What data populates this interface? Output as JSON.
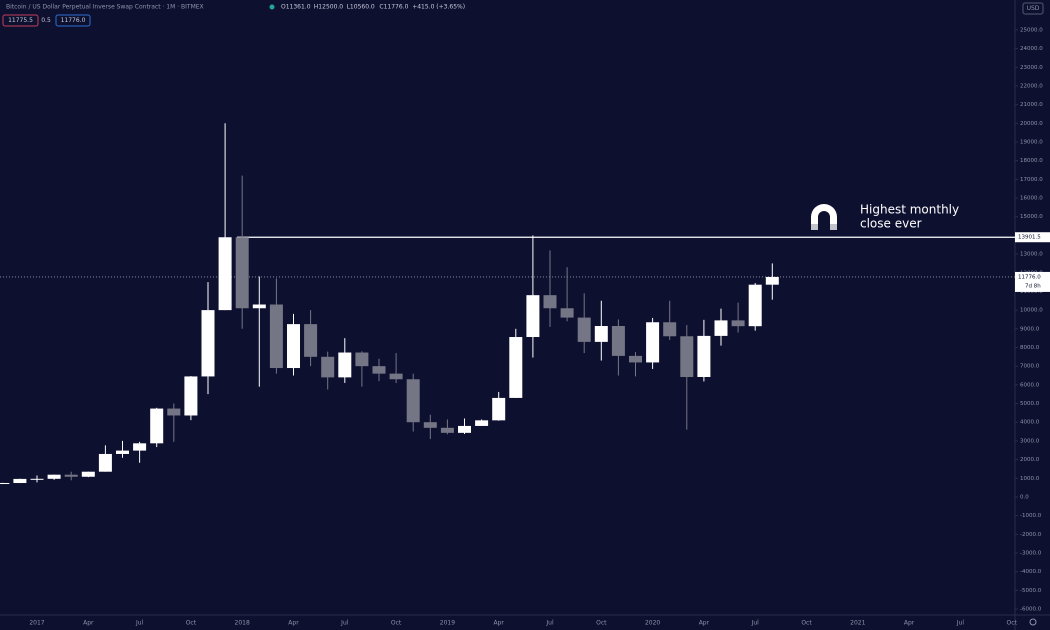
{
  "chart_data": {
    "type": "candlestick",
    "title": "Bitcoin / US Dollar Perpetual Inverse Swap Contract · 1M · BITMEX",
    "ohlc_header": [
      "O11361.0",
      "H12500.0",
      "L10560.0",
      "C11776.0",
      "+415.0 (+3.65%)"
    ],
    "quote_boxes": [
      "11775.5",
      "0.5",
      "11776.0"
    ],
    "currency": "USD",
    "up_color": "#ffffff",
    "down_color": "#757685",
    "background": "#0e1030",
    "categories": [
      null,
      null,
      "2017",
      null,
      null,
      "Apr",
      null,
      null,
      "Jul",
      null,
      null,
      "Oct",
      null,
      null,
      "2018",
      null,
      null,
      "Apr",
      null,
      null,
      "Jul",
      null,
      null,
      "Oct",
      null,
      null,
      "2019",
      null,
      null,
      "Apr",
      null,
      null,
      "Jul",
      null,
      null,
      "Oct",
      null,
      null,
      "2020",
      null,
      null,
      "Apr",
      null,
      null,
      "Jul",
      null,
      null,
      "Oct",
      null,
      null,
      "2021",
      null,
      null,
      "Apr",
      null,
      null,
      "Jul",
      null,
      null,
      "Oct"
    ],
    "open": [
      700,
      745,
      965,
      970,
      1190,
      1080,
      1350,
      2300,
      2480,
      2870,
      4730,
      4360,
      6450,
      10000,
      13900,
      10100,
      10300,
      6900,
      9250,
      7500,
      6400,
      7730,
      7000,
      6600,
      6300,
      4000,
      3700,
      3430,
      3800,
      4100,
      5300,
      8560,
      10800,
      10100,
      9600,
      8300,
      9150,
      7550,
      7200,
      9350,
      8600,
      6420,
      8620,
      9450,
      9140,
      11361,
      null,
      null,
      null,
      null,
      null,
      null,
      null,
      null,
      null,
      null,
      null,
      null,
      null,
      null
    ],
    "high": [
      760,
      975,
      1150,
      1200,
      1350,
      1350,
      2760,
      3000,
      2950,
      4770,
      5000,
      6470,
      11500,
      20000,
      17200,
      11800,
      11700,
      9800,
      10000,
      7780,
      8500,
      7800,
      7400,
      7700,
      6600,
      4400,
      4150,
      4200,
      4150,
      5620,
      9000,
      14000,
      13200,
      12300,
      10900,
      10500,
      9500,
      7750,
      9580,
      10500,
      9200,
      9480,
      10080,
      10400,
      11450,
      12500,
      null,
      null,
      null,
      null,
      null,
      null,
      null,
      null,
      null,
      null,
      null,
      null,
      null,
      null
    ],
    "low": [
      690,
      740,
      780,
      915,
      890,
      1060,
      1350,
      2100,
      1830,
      2670,
      2950,
      4110,
      5500,
      10000,
      9000,
      5900,
      6600,
      6500,
      7000,
      5750,
      6100,
      5900,
      6200,
      6100,
      3500,
      3100,
      3350,
      3370,
      3800,
      4080,
      5300,
      7460,
      9100,
      9400,
      7700,
      7300,
      6500,
      6450,
      6850,
      8400,
      3600,
      6180,
      8100,
      8800,
      8900,
      10560,
      null,
      null,
      null,
      null,
      null,
      null,
      null,
      null,
      null,
      null,
      null,
      null,
      null,
      null
    ],
    "close": [
      745,
      965,
      970,
      1190,
      1080,
      1350,
      2300,
      2480,
      2870,
      4730,
      4360,
      6450,
      10000,
      13900,
      10100,
      10300,
      6900,
      9250,
      7500,
      6400,
      7730,
      7000,
      6600,
      6300,
      4000,
      3700,
      3430,
      3800,
      4100,
      5300,
      8560,
      10800,
      10100,
      9600,
      8300,
      9150,
      7550,
      7200,
      9350,
      8600,
      6420,
      8620,
      9450,
      9140,
      11361,
      11776,
      null,
      null,
      null,
      null,
      null,
      null,
      null,
      null,
      null,
      null,
      null,
      null,
      null,
      null
    ],
    "ylim": [
      -6320,
      26600
    ],
    "yticks": [
      {
        "value": -6000,
        "label": "-6000.0"
      },
      {
        "value": -5000,
        "label": "-5000.0"
      },
      {
        "value": -4000,
        "label": "-4000.0"
      },
      {
        "value": -3000,
        "label": "-3000.0"
      },
      {
        "value": -2000,
        "label": "-2000.0"
      },
      {
        "value": -1000,
        "label": "-1000.0"
      },
      {
        "value": 0,
        "label": "0.0"
      },
      {
        "value": 1000,
        "label": "1000.0"
      },
      {
        "value": 2000,
        "label": "2000.0"
      },
      {
        "value": 3000,
        "label": "3000.0"
      },
      {
        "value": 4000,
        "label": "4000.0"
      },
      {
        "value": 5000,
        "label": "5000.0"
      },
      {
        "value": 6000,
        "label": "6000.0"
      },
      {
        "value": 7000,
        "label": "7000.0"
      },
      {
        "value": 8000,
        "label": "8000.0"
      },
      {
        "value": 9000,
        "label": "9000.0"
      },
      {
        "value": 10000,
        "label": "10000.0"
      },
      {
        "value": 11000,
        "label": "11000.0"
      },
      {
        "value": 12000,
        "label": "12000.0"
      },
      {
        "value": 13000,
        "label": "13000.0"
      },
      {
        "value": 14000,
        "label": "14000.0"
      },
      {
        "value": 15000,
        "label": "15000.0"
      },
      {
        "value": 16000,
        "label": "16000.0"
      },
      {
        "value": 17000,
        "label": "17000.0"
      },
      {
        "value": 18000,
        "label": "18000.0"
      },
      {
        "value": 19000,
        "label": "19000.0"
      },
      {
        "value": 20000,
        "label": "20000.0"
      },
      {
        "value": 21000,
        "label": "21000.0"
      },
      {
        "value": 22000,
        "label": "22000.0"
      },
      {
        "value": 23000,
        "label": "23000.0"
      },
      {
        "value": 24000,
        "label": "24000.0"
      },
      {
        "value": 25000,
        "label": "25000.0"
      }
    ],
    "hlines": [
      {
        "value": 13901.5,
        "label": "13901.5",
        "color": "#ffffff"
      }
    ],
    "last_price": {
      "value": 11776,
      "label": "11776.0",
      "countdown": "7d 8h",
      "color": "#9a9aa8"
    },
    "annotation": [
      "Highest monthly",
      "close ever"
    ]
  }
}
